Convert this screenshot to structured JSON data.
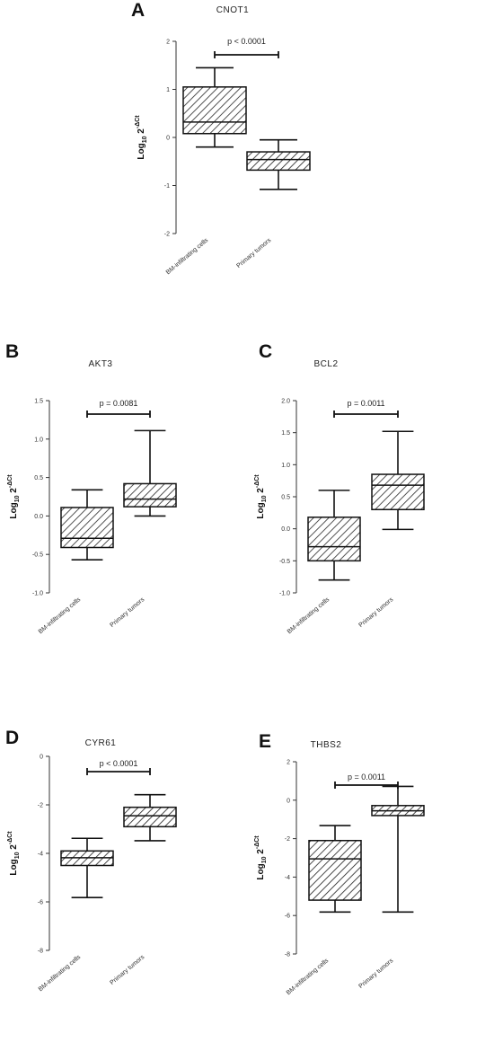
{
  "chart_data": [
    {
      "type": "box",
      "panel": "A",
      "title": "CNOT1",
      "ylabel": "Log10 2^-ΔCt",
      "ylim": [
        -2,
        2
      ],
      "yticks": [
        2,
        1,
        0,
        -1,
        -2
      ],
      "categories": [
        "BM-infiltrating cells",
        "Primary tumors"
      ],
      "boxes": [
        {
          "min": -0.2,
          "q1": 0.08,
          "median": 0.32,
          "q3": 1.05,
          "max": 1.45
        },
        {
          "min": -1.08,
          "q1": -0.68,
          "median": -0.46,
          "q3": -0.3,
          "max": -0.05
        }
      ],
      "pvalue": "p < 0.0001"
    },
    {
      "type": "box",
      "panel": "B",
      "title": "AKT3",
      "ylabel": "Log10 2^-ΔCt",
      "ylim": [
        -1.0,
        1.5
      ],
      "yticks": [
        1.5,
        1.0,
        0.5,
        0.0,
        -0.5,
        -1.0
      ],
      "categories": [
        "BM-infiltrating cells",
        "Primary tumors"
      ],
      "boxes": [
        {
          "min": -0.57,
          "q1": -0.41,
          "median": -0.29,
          "q3": 0.11,
          "max": 0.34
        },
        {
          "min": 0.0,
          "q1": 0.12,
          "median": 0.22,
          "q3": 0.42,
          "max": 1.11
        }
      ],
      "pvalue": "p = 0.0081"
    },
    {
      "type": "box",
      "panel": "C",
      "title": "BCL2",
      "ylabel": "Log10 2^-ΔCt",
      "ylim": [
        -1.0,
        2.0
      ],
      "yticks": [
        2.0,
        1.5,
        1.0,
        0.5,
        0.0,
        -0.5,
        -1.0
      ],
      "categories": [
        "BM-infiltrating cells",
        "Primary tumors"
      ],
      "boxes": [
        {
          "min": -0.8,
          "q1": -0.5,
          "median": -0.28,
          "q3": 0.18,
          "max": 0.6
        },
        {
          "min": -0.01,
          "q1": 0.3,
          "median": 0.68,
          "q3": 0.85,
          "max": 1.52
        }
      ],
      "pvalue": "p = 0.0011"
    },
    {
      "type": "box",
      "panel": "D",
      "title": "CYR61",
      "ylabel": "Log10 2^-ΔCt",
      "ylim": [
        -8,
        0
      ],
      "yticks": [
        0,
        -2,
        -4,
        -6,
        -8
      ],
      "categories": [
        "BM-infiltrating cells",
        "Primary tumors"
      ],
      "boxes": [
        {
          "min": -5.82,
          "q1": -4.5,
          "median": -4.18,
          "q3": -3.9,
          "max": -3.38
        },
        {
          "min": -3.48,
          "q1": -2.9,
          "median": -2.45,
          "q3": -2.1,
          "max": -1.58
        }
      ],
      "pvalue": "p < 0.0001"
    },
    {
      "type": "box",
      "panel": "E",
      "title": "THBS2",
      "ylabel": "Log10 2^-ΔCt",
      "ylim": [
        -8,
        2
      ],
      "yticks": [
        2,
        0,
        -2,
        -4,
        -6,
        -8
      ],
      "categories": [
        "BM-infiltrating cells",
        "Primary tumors"
      ],
      "boxes": [
        {
          "min": -5.82,
          "q1": -5.2,
          "median": -3.05,
          "q3": -2.1,
          "max": -1.32
        },
        {
          "min": -5.82,
          "q1": -0.8,
          "median": -0.55,
          "q3": -0.28,
          "max": 0.72
        }
      ],
      "pvalue": "p = 0.0011"
    }
  ]
}
